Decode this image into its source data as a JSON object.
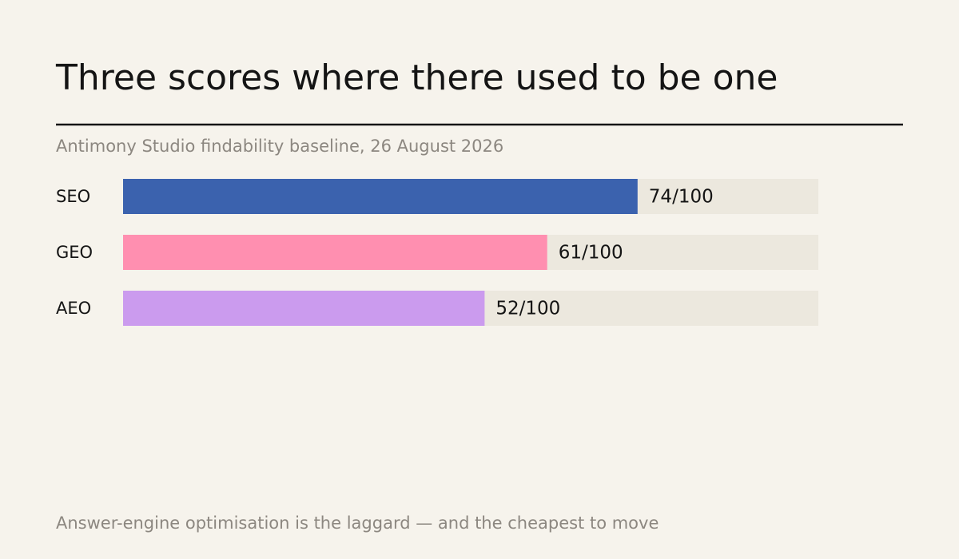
{
  "chart_data": {
    "type": "bar",
    "orientation": "horizontal",
    "title": "Three scores where there used to be one",
    "subtitle": "Antimony Studio findability baseline, 26 August 2026",
    "categories": [
      "SEO",
      "GEO",
      "AEO"
    ],
    "values": [
      74,
      61,
      52
    ],
    "value_labels": [
      "74/100",
      "61/100",
      "52/100"
    ],
    "colors": [
      "#3b62ae",
      "#ff8fb0",
      "#cb9bee"
    ],
    "track_color": "#ece8de",
    "xlim": [
      0,
      100
    ],
    "annotation": "Answer-engine optimisation is the laggard — and the cheapest to move"
  }
}
